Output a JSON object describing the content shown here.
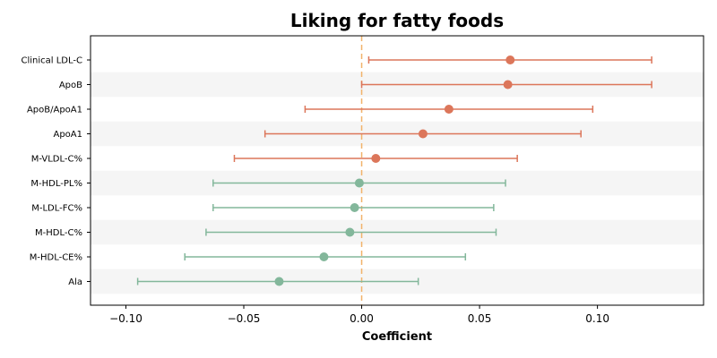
{
  "chart_data": {
    "type": "forest",
    "title": "Liking for fatty foods",
    "xlabel": "Coefficient",
    "xlim": [
      -0.115,
      0.145
    ],
    "xticks": [
      -0.1,
      -0.05,
      0.0,
      0.05,
      0.1
    ],
    "xtick_labels": [
      "−0.10",
      "−0.05",
      "0.00",
      "0.05",
      "0.10"
    ],
    "reference_line": 0.0,
    "reference_line_color": "#f2b36b",
    "colors": {
      "positive": "#dc765a",
      "negative": "#83b79b",
      "stripe": "#f5f5f5"
    },
    "rows": [
      {
        "label": "Clinical LDL-C",
        "coef": 0.063,
        "lower": 0.003,
        "upper": 0.123,
        "group": "positive"
      },
      {
        "label": "ApoB",
        "coef": 0.062,
        "lower": 0.0,
        "upper": 0.123,
        "group": "positive"
      },
      {
        "label": "ApoB/ApoA1",
        "coef": 0.037,
        "lower": -0.024,
        "upper": 0.098,
        "group": "positive"
      },
      {
        "label": "ApoA1",
        "coef": 0.026,
        "lower": -0.041,
        "upper": 0.093,
        "group": "positive"
      },
      {
        "label": "M-VLDL-C%",
        "coef": 0.006,
        "lower": -0.054,
        "upper": 0.066,
        "group": "positive"
      },
      {
        "label": "M-HDL-PL%",
        "coef": -0.001,
        "lower": -0.063,
        "upper": 0.061,
        "group": "negative"
      },
      {
        "label": "M-LDL-FC%",
        "coef": -0.003,
        "lower": -0.063,
        "upper": 0.056,
        "group": "negative"
      },
      {
        "label": "M-HDL-C%",
        "coef": -0.005,
        "lower": -0.066,
        "upper": 0.057,
        "group": "negative"
      },
      {
        "label": "M-HDL-CE%",
        "coef": -0.016,
        "lower": -0.075,
        "upper": 0.044,
        "group": "negative"
      },
      {
        "label": "Ala",
        "coef": -0.035,
        "lower": -0.095,
        "upper": 0.024,
        "group": "negative"
      }
    ]
  }
}
